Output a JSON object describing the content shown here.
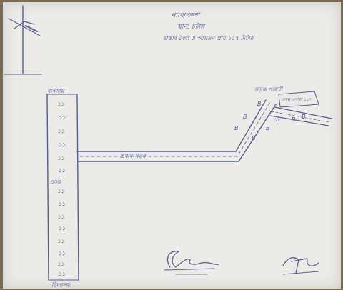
{
  "header": {
    "line1": "ন্যাপ/নকশা",
    "line2": "স্থান: চটাঙ্গ",
    "line3": "রাস্তার দৈর্ঘ্য ও আয়তন প্রায় ১১৭ মিটার"
  },
  "labels": {
    "vertical_top": "ব্যবসায়",
    "vertical_middle": "প্রকল্প",
    "vertical_bottom": "বিদ্যালয়",
    "horizontal_road": "প্রধান সড়ক",
    "branch_top": "সড়ক পয়েন্ট",
    "box_text": "প্রকল্প এলাকা ১১৭"
  },
  "vertical_marks": [
    "১১",
    "১১",
    "১১",
    "১১",
    "১১",
    "১১",
    "১১",
    "১১",
    "১১",
    "১১",
    "১১",
    "১১",
    "১১",
    "১১"
  ],
  "branch_marks": [
    "B",
    "B",
    "B",
    "B",
    "B",
    "B",
    "B",
    "B"
  ],
  "colors": {
    "paper": "#ecebe8",
    "ink": "#4b5590",
    "board": "#7a6a55"
  }
}
